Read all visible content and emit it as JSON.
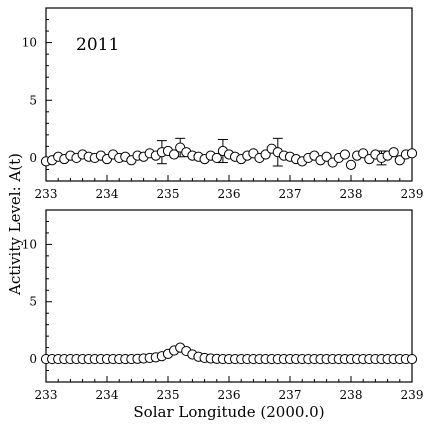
{
  "figure": {
    "xlabel": "Solar Longitude (2000.0)",
    "ylabel": "Activity Level: A(t)"
  },
  "chart_data": [
    {
      "type": "scatter",
      "annotation": "2011",
      "xlim": [
        233,
        239
      ],
      "ylim": [
        -2,
        13
      ],
      "x_ticks": [
        233,
        234,
        235,
        236,
        237,
        238,
        239
      ],
      "y_ticks": [
        0,
        5,
        10
      ],
      "marker": "open-circle",
      "x": [
        233.0,
        233.1,
        233.2,
        233.3,
        233.4,
        233.5,
        233.6,
        233.7,
        233.8,
        233.9,
        234.0,
        234.1,
        234.2,
        234.3,
        234.4,
        234.5,
        234.6,
        234.7,
        234.8,
        234.9,
        235.0,
        235.1,
        235.2,
        235.3,
        235.4,
        235.5,
        235.6,
        235.7,
        235.8,
        235.9,
        236.0,
        236.1,
        236.2,
        236.3,
        236.4,
        236.5,
        236.6,
        236.7,
        236.8,
        236.9,
        237.0,
        237.1,
        237.2,
        237.3,
        237.4,
        237.5,
        237.6,
        237.7,
        237.8,
        237.9,
        238.0,
        238.1,
        238.2,
        238.3,
        238.4,
        238.5,
        238.6,
        238.7,
        238.8,
        238.9,
        239.0
      ],
      "y": [
        -0.3,
        -0.2,
        0.1,
        -0.1,
        0.2,
        0.0,
        0.3,
        0.1,
        0.0,
        0.2,
        -0.1,
        0.3,
        0.0,
        0.1,
        -0.2,
        0.2,
        0.1,
        0.4,
        0.2,
        0.5,
        0.6,
        0.3,
        0.9,
        0.5,
        0.2,
        0.1,
        -0.1,
        0.2,
        0.0,
        0.6,
        0.3,
        0.1,
        -0.1,
        0.2,
        0.4,
        0.0,
        0.3,
        0.8,
        0.5,
        0.2,
        0.1,
        -0.1,
        -0.3,
        0.0,
        0.2,
        -0.2,
        0.1,
        -0.4,
        0.0,
        0.3,
        -0.6,
        0.2,
        0.4,
        -0.1,
        0.3,
        0.0,
        0.2,
        0.5,
        -0.2,
        0.3,
        0.4
      ],
      "errors": [
        {
          "x": 234.9,
          "y": 0.5,
          "err": 1.0
        },
        {
          "x": 235.2,
          "y": 0.9,
          "err": 0.8
        },
        {
          "x": 235.9,
          "y": 0.6,
          "err": 1.0
        },
        {
          "x": 236.8,
          "y": 0.5,
          "err": 1.2
        },
        {
          "x": 238.5,
          "y": 0.0,
          "err": 0.6
        }
      ]
    },
    {
      "type": "scatter",
      "annotation": "",
      "xlim": [
        233,
        239
      ],
      "ylim": [
        -2,
        13
      ],
      "x_ticks": [
        233,
        234,
        235,
        236,
        237,
        238,
        239
      ],
      "y_ticks": [
        0,
        5,
        10
      ],
      "marker": "open-circle",
      "x": [
        233.0,
        233.1,
        233.2,
        233.3,
        233.4,
        233.5,
        233.6,
        233.7,
        233.8,
        233.9,
        234.0,
        234.1,
        234.2,
        234.3,
        234.4,
        234.5,
        234.6,
        234.7,
        234.8,
        234.9,
        235.0,
        235.1,
        235.2,
        235.3,
        235.4,
        235.5,
        235.6,
        235.7,
        235.8,
        235.9,
        236.0,
        236.1,
        236.2,
        236.3,
        236.4,
        236.5,
        236.6,
        236.7,
        236.8,
        236.9,
        237.0,
        237.1,
        237.2,
        237.3,
        237.4,
        237.5,
        237.6,
        237.7,
        237.8,
        237.9,
        238.0,
        238.1,
        238.2,
        238.3,
        238.4,
        238.5,
        238.6,
        238.7,
        238.8,
        238.9,
        239.0
      ],
      "y": [
        0.0,
        0.0,
        0.0,
        0.0,
        0.0,
        0.0,
        0.0,
        0.0,
        0.0,
        0.0,
        0.0,
        0.0,
        0.0,
        0.0,
        0.0,
        0.02,
        0.05,
        0.1,
        0.15,
        0.25,
        0.45,
        0.75,
        1.0,
        0.7,
        0.4,
        0.2,
        0.1,
        0.05,
        0.02,
        0.0,
        0.0,
        0.0,
        0.0,
        0.0,
        0.0,
        0.0,
        0.0,
        0.0,
        0.0,
        0.0,
        0.0,
        0.0,
        0.0,
        0.0,
        0.0,
        0.0,
        0.0,
        0.0,
        0.0,
        0.0,
        0.0,
        0.0,
        0.0,
        0.0,
        0.0,
        0.0,
        0.0,
        0.0,
        0.0,
        0.0,
        0.0
      ]
    }
  ]
}
